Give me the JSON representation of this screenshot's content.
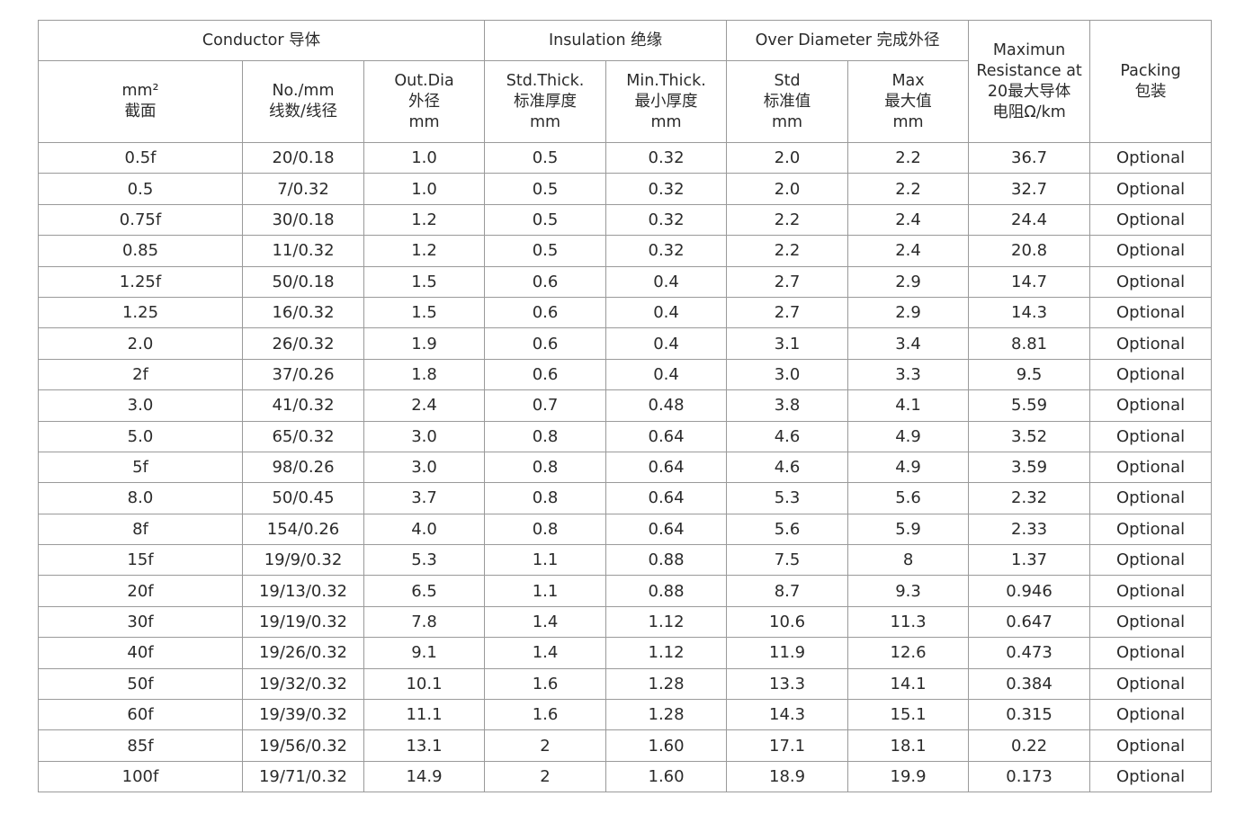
{
  "header": {
    "groups": [
      "Conductor 导体",
      "Insulation 绝缘",
      "Over Diameter 完成外径",
      "Maximun\nResistance at\n20最大导体\n电阻Ω/km",
      "Packing\n包装"
    ],
    "columns": [
      "mm²\n截面",
      "No./mm\n线数/线径",
      "Out.Dia\n外径\nmm",
      "Std.Thick.\n标准厚度\nmm",
      "Min.Thick.\n最小厚度\nmm",
      "Std\n标准值\nmm",
      "Max\n最大值\nmm"
    ]
  },
  "rows": [
    [
      "0.5f",
      "20/0.18",
      "1.0",
      "0.5",
      "0.32",
      "2.0",
      "2.2",
      "36.7",
      "Optional"
    ],
    [
      "0.5",
      "7/0.32",
      "1.0",
      "0.5",
      "0.32",
      "2.0",
      "2.2",
      "32.7",
      "Optional"
    ],
    [
      "0.75f",
      "30/0.18",
      "1.2",
      "0.5",
      "0.32",
      "2.2",
      "2.4",
      "24.4",
      "Optional"
    ],
    [
      "0.85",
      "11/0.32",
      "1.2",
      "0.5",
      "0.32",
      "2.2",
      "2.4",
      "20.8",
      "Optional"
    ],
    [
      "1.25f",
      "50/0.18",
      "1.5",
      "0.6",
      "0.4",
      "2.7",
      "2.9",
      "14.7",
      "Optional"
    ],
    [
      "1.25",
      "16/0.32",
      "1.5",
      "0.6",
      "0.4",
      "2.7",
      "2.9",
      "14.3",
      "Optional"
    ],
    [
      "2.0",
      "26/0.32",
      "1.9",
      "0.6",
      "0.4",
      "3.1",
      "3.4",
      "8.81",
      "Optional"
    ],
    [
      "2f",
      "37/0.26",
      "1.8",
      "0.6",
      "0.4",
      "3.0",
      "3.3",
      "9.5",
      "Optional"
    ],
    [
      "3.0",
      "41/0.32",
      "2.4",
      "0.7",
      "0.48",
      "3.8",
      "4.1",
      "5.59",
      "Optional"
    ],
    [
      "5.0",
      "65/0.32",
      "3.0",
      "0.8",
      "0.64",
      "4.6",
      "4.9",
      "3.52",
      "Optional"
    ],
    [
      "5f",
      "98/0.26",
      "3.0",
      "0.8",
      "0.64",
      "4.6",
      "4.9",
      "3.59",
      "Optional"
    ],
    [
      "8.0",
      "50/0.45",
      "3.7",
      "0.8",
      "0.64",
      "5.3",
      "5.6",
      "2.32",
      "Optional"
    ],
    [
      "8f",
      "154/0.26",
      "4.0",
      "0.8",
      "0.64",
      "5.6",
      "5.9",
      "2.33",
      "Optional"
    ],
    [
      "15f",
      "19/9/0.32",
      "5.3",
      "1.1",
      "0.88",
      "7.5",
      "8",
      "1.37",
      "Optional"
    ],
    [
      "20f",
      "19/13/0.32",
      "6.5",
      "1.1",
      "0.88",
      "8.7",
      "9.3",
      "0.946",
      "Optional"
    ],
    [
      "30f",
      "19/19/0.32",
      "7.8",
      "1.4",
      "1.12",
      "10.6",
      "11.3",
      "0.647",
      "Optional"
    ],
    [
      "40f",
      "19/26/0.32",
      "9.1",
      "1.4",
      "1.12",
      "11.9",
      "12.6",
      "0.473",
      "Optional"
    ],
    [
      "50f",
      "19/32/0.32",
      "10.1",
      "1.6",
      "1.28",
      "13.3",
      "14.1",
      "0.384",
      "Optional"
    ],
    [
      "60f",
      "19/39/0.32",
      "11.1",
      "1.6",
      "1.28",
      "14.3",
      "15.1",
      "0.315",
      "Optional"
    ],
    [
      "85f",
      "19/56/0.32",
      "13.1",
      "2",
      "1.60",
      "17.1",
      "18.1",
      "0.22",
      "Optional"
    ],
    [
      "100f",
      "19/71/0.32",
      "14.9",
      "2",
      "1.60",
      "18.9",
      "19.9",
      "0.173",
      "Optional"
    ]
  ]
}
